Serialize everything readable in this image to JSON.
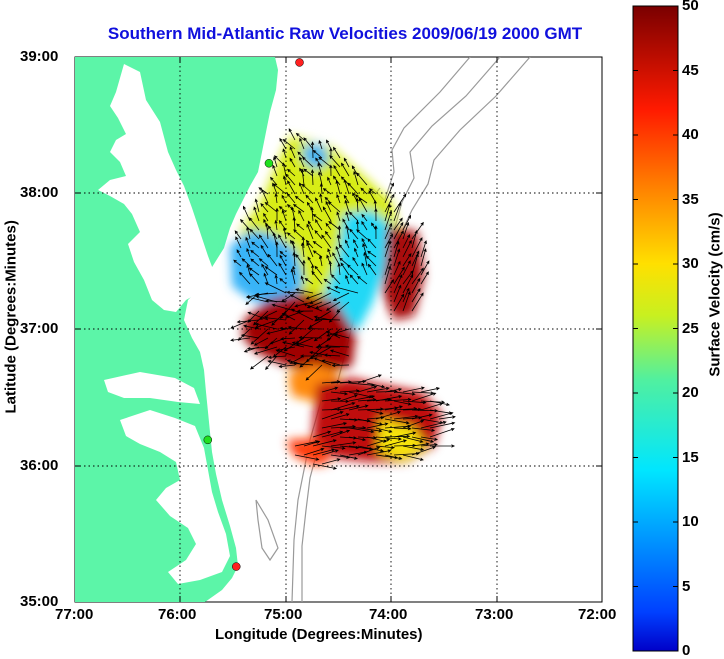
{
  "title": "Southern Mid-Atlantic Raw Velocities 2009/06/19 2000 GMT",
  "xlabel": "Longitude (Degrees:Minutes)",
  "ylabel": "Latitude (Degrees:Minutes)",
  "colorbar": {
    "label": "Surface Velocity (cm/s)",
    "range": [
      0,
      50
    ],
    "ticks": [
      "0",
      "5",
      "10",
      "15",
      "20",
      "25",
      "30",
      "35",
      "40",
      "45",
      "50"
    ]
  },
  "axes": {
    "lon_ticks": [
      "77:00",
      "76:00",
      "75:00",
      "74:00",
      "73:00",
      "72:00"
    ],
    "lat_ticks": [
      "39:00",
      "38:00",
      "37:00",
      "36:00",
      "35:00"
    ],
    "lon_range": [
      -77,
      -72
    ],
    "lat_range": [
      35,
      39
    ],
    "grid": true
  },
  "colors": {
    "land": "#5cf5a8",
    "title": "#1010dd",
    "bathymetry": "#9a9a9a",
    "station": "#ff2020"
  },
  "stations": [
    {
      "lon": -74.87,
      "lat": 38.96,
      "color": "red"
    },
    {
      "lon": -75.16,
      "lat": 38.22,
      "color": "green"
    },
    {
      "lon": -75.74,
      "lat": 36.19,
      "color": "green"
    },
    {
      "lon": -75.47,
      "lat": 35.26,
      "color": "red"
    }
  ],
  "velocity_patches": [
    {
      "region": "north-central",
      "speed_cm_s": 22
    },
    {
      "region": "west-nearshore",
      "speed_cm_s": 8
    },
    {
      "region": "east-central",
      "speed_cm_s": 10
    },
    {
      "region": "east-offshore",
      "speed_cm_s": 47
    },
    {
      "region": "mouth-of-bay",
      "speed_cm_s": 48
    },
    {
      "region": "south",
      "speed_cm_s": 42
    }
  ]
}
